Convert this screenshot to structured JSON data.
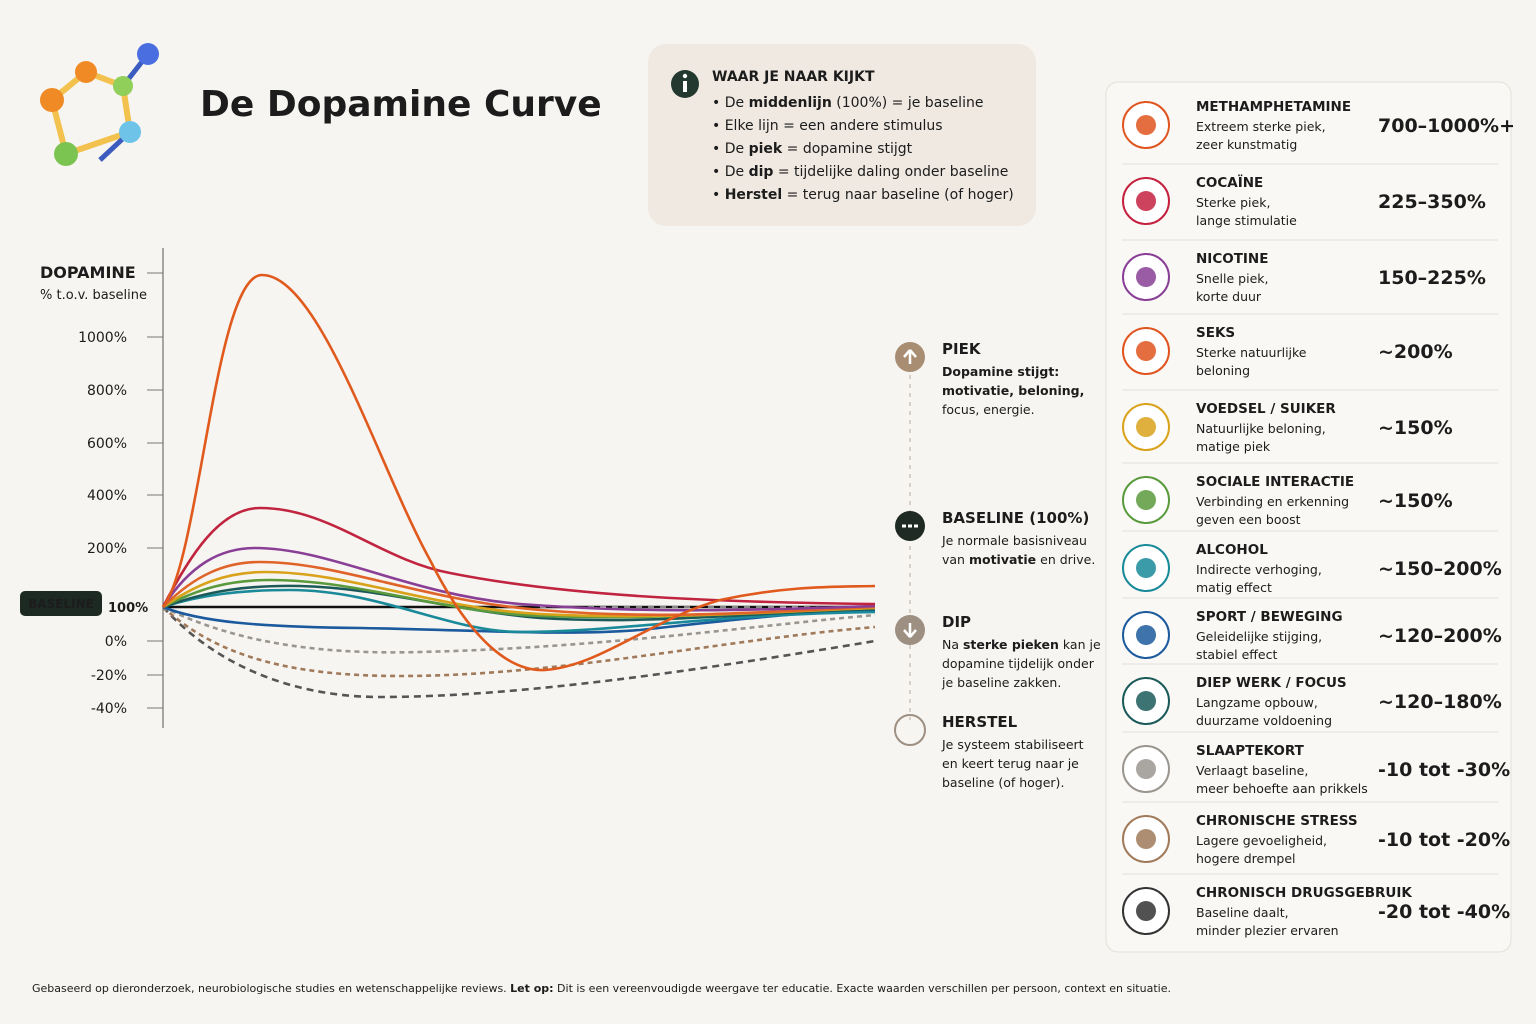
{
  "header": {
    "title": "De Dopamine Curve"
  },
  "info": {
    "title": "WAAR JE NAAR KIJKT",
    "items": [
      [
        {
          "text": "• De "
        },
        {
          "text": "middenlijn",
          "bold": true
        },
        {
          "text": " (100%) = je baseline"
        }
      ],
      [
        {
          "text": "• Elke lijn = een andere stimulus"
        }
      ],
      [
        {
          "text": "• De "
        },
        {
          "text": "piek",
          "bold": true
        },
        {
          "text": " = dopamine stijgt"
        }
      ],
      [
        {
          "text": "• De "
        },
        {
          "text": "dip",
          "bold": true
        },
        {
          "text": " = tijdelijke daling onder baseline"
        }
      ],
      [
        {
          "text": "• "
        },
        {
          "text": "Herstel",
          "bold": true
        },
        {
          "text": " = terug naar baseline (of hoger)"
        }
      ]
    ]
  },
  "axis": {
    "title": "DOPAMINE",
    "subtitle": "% t.o.v. baseline",
    "ticks": [
      "1000%",
      "800%",
      "600%",
      "400%",
      "200%",
      "0%",
      "-20%",
      "-40%"
    ],
    "baseline_badge": "BASELINE",
    "baseline_tick": "100%"
  },
  "phases": [
    {
      "title": "PIEK",
      "lines": [
        [
          {
            "text": "Dopamine stijgt:",
            "bold": true
          }
        ],
        [
          {
            "text": "motivatie, beloning,",
            "bold": true
          }
        ],
        [
          {
            "text": "focus, energie."
          }
        ]
      ]
    },
    {
      "title": "BASELINE (100%)",
      "lines": [
        [
          {
            "text": "Je normale basisniveau"
          }
        ],
        [
          {
            "text": "van "
          },
          {
            "text": "motivatie",
            "bold": true
          },
          {
            "text": " en drive."
          }
        ]
      ]
    },
    {
      "title": "DIP",
      "lines": [
        [
          {
            "text": "Na "
          },
          {
            "text": "sterke pieken",
            "bold": true
          },
          {
            "text": " kan je"
          }
        ],
        [
          {
            "text": "dopamine tijdelijk onder"
          }
        ],
        [
          {
            "text": "je baseline zakken."
          }
        ]
      ]
    },
    {
      "title": "HERSTEL",
      "lines": [
        [
          {
            "text": "Je systeem stabiliseert"
          }
        ],
        [
          {
            "text": "en keert terug naar je"
          }
        ],
        [
          {
            "text": "baseline (of hoger)."
          }
        ]
      ]
    }
  ],
  "legend": [
    {
      "name": "METHAMPHETAMINE",
      "desc": [
        "Extreem sterke piek,",
        "zeer kunstmatig"
      ],
      "range": "700–1000%+",
      "color": "#e0551f"
    },
    {
      "name": "COCAÏNE",
      "desc": [
        "Sterke piek,",
        "lange stimulatie"
      ],
      "range": "225–350%",
      "color": "#c4213f"
    },
    {
      "name": "NICOTINE",
      "desc": [
        "Snelle piek,",
        "korte duur"
      ],
      "range": "150–225%",
      "color": "#8a3f96"
    },
    {
      "name": "SEKS",
      "desc": [
        "Sterke natuurlijke",
        "beloning"
      ],
      "range": "~200%",
      "color": "#e0551f"
    },
    {
      "name": "VOEDSEL / SUIKER",
      "desc": [
        "Natuurlijke beloning,",
        "matige piek"
      ],
      "range": "~150%",
      "color": "#d9a21b"
    },
    {
      "name": "SOCIALE INTERACTIE",
      "desc": [
        "Verbinding en erkenning",
        "geven een boost"
      ],
      "range": "~150%",
      "color": "#5a9a3c"
    },
    {
      "name": "ALCOHOL",
      "desc": [
        "Indirecte verhoging,",
        "matig effect"
      ],
      "range": "~150–200%",
      "color": "#1a8a9a"
    },
    {
      "name": "SPORT / BEWEGING",
      "desc": [
        "Geleidelijke stijging,",
        "stabiel effect"
      ],
      "range": "~120–200%",
      "color": "#1c5a9e"
    },
    {
      "name": "DIEP WERK / FOCUS",
      "desc": [
        "Langzame opbouw,",
        "duurzame voldoening"
      ],
      "range": "~120–180%",
      "color": "#1c5a5a"
    },
    {
      "name": "SLAAPTEKORT",
      "desc": [
        "Verlaagt baseline,",
        "meer behoefte aan prikkels"
      ],
      "range": "-10 tot -30%",
      "color": "#9a958f"
    },
    {
      "name": "CHRONISCHE STRESS",
      "desc": [
        "Lagere gevoeligheid,",
        "hogere drempel"
      ],
      "range": "-10 tot -20%",
      "color": "#a07a5a"
    },
    {
      "name": "CHRONISCH DRUGSGEBRUIK",
      "desc": [
        "Baseline daalt,",
        "minder plezier ervaren"
      ],
      "range": "-20 tot -40%",
      "color": "#333333"
    }
  ],
  "footer": [
    {
      "text": "Gebaseerd op dieronderzoek, neurobiologische studies en wetenschappelijke reviews.   "
    },
    {
      "text": "Let op:",
      "bold": true
    },
    {
      "text": " Dit is een vereenvoudigde weergave ter educatie. Exacte waarden verschillen per persoon, context en situatie."
    }
  ]
}
